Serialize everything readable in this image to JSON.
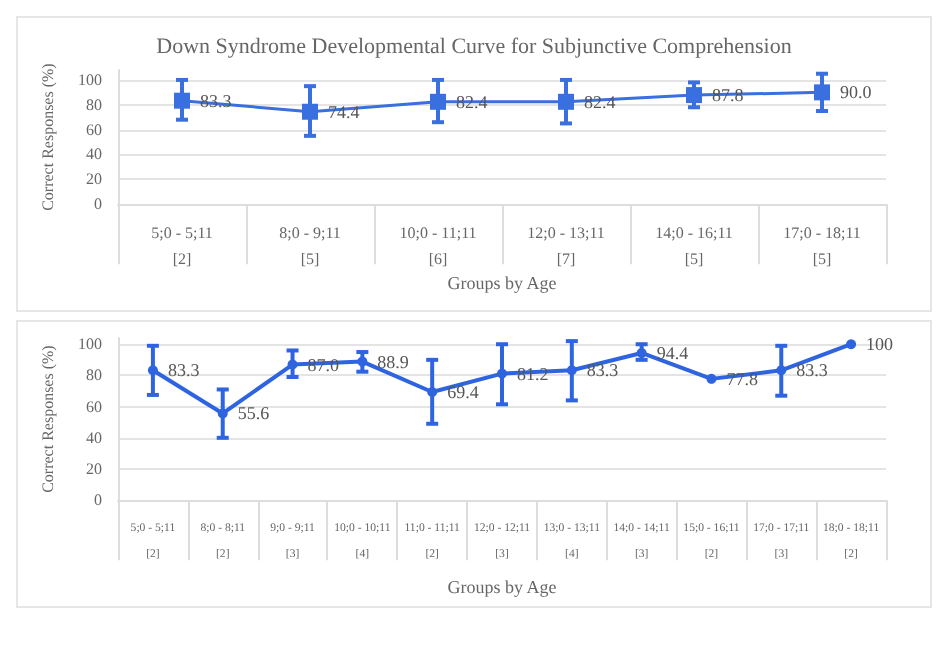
{
  "chart_data": [
    {
      "type": "line",
      "title": "Down Syndrome Developmental Curve for Subjunctive Comprehension",
      "xlabel": "Groups by Age",
      "ylabel": "Correct Responses (%)",
      "categories": [
        "5;0 - 5;11\n[2]",
        "8;0 - 9;11\n[5]",
        "10;0 - 11;11\n[6]",
        "12;0 - 13;11\n[7]",
        "14;0 - 16;11\n[5]",
        "17;0 - 18;11\n[5]"
      ],
      "series": [
        {
          "color": "#3a6fe0",
          "values": [
            83.3,
            74.4,
            82.4,
            82.4,
            87.8,
            90.0
          ],
          "value_labels": [
            "83.3",
            "74.4",
            "82.4",
            "82.4",
            "87.8",
            "90.0"
          ],
          "errors": [
            [
              68,
              100
            ],
            [
              55,
              95
            ],
            [
              66,
              100
            ],
            [
              65,
              100
            ],
            [
              78,
              98
            ],
            [
              75,
              105
            ]
          ]
        }
      ],
      "ylim": [
        0,
        108
      ],
      "yticks": [
        0,
        20,
        40,
        60,
        80,
        100
      ],
      "grid": "y",
      "marker": "square",
      "line_style": "solid"
    },
    {
      "type": "line",
      "xlabel": "Groups by Age",
      "ylabel": "Correct Responses (%)",
      "categories": [
        "5;0 - 5;11\n[2]",
        "8;0 - 8;11\n[2]",
        "9;0 - 9;11\n[3]",
        "10;0 - 10;11\n[4]",
        "11;0 - 11;11\n[2]",
        "12;0 - 12;11\n[3]",
        "13;0 - 13;11\n[4]",
        "14;0 - 14;11\n[3]",
        "15;0 - 16;11\n[2]",
        "17;0 - 17;11\n[3]",
        "18;0 - 18;11\n[2]"
      ],
      "series": [
        {
          "color": "#2f64e0",
          "values": [
            83.3,
            55.6,
            87.0,
            88.9,
            69.4,
            81.2,
            83.3,
            94.4,
            77.8,
            83.3,
            100
          ],
          "value_labels": [
            "83.3",
            "55.6",
            "87.0",
            "88.9",
            "69.4",
            "81.2",
            "83.3",
            "94.4",
            "77.8",
            "83.3",
            "100"
          ],
          "errors": [
            [
              67.5,
              99
            ],
            [
              40,
              71
            ],
            [
              79,
              96
            ],
            [
              82.4,
              95
            ],
            [
              49,
              90
            ],
            [
              61.5,
              100
            ],
            [
              64,
              102
            ],
            [
              90,
              100
            ],
            null,
            [
              67,
              99
            ],
            null
          ]
        }
      ],
      "ylim": [
        0,
        104
      ],
      "yticks": [
        0,
        20,
        40,
        60,
        80,
        100
      ],
      "grid": "y",
      "marker": "circle",
      "line_style": "solid"
    }
  ]
}
